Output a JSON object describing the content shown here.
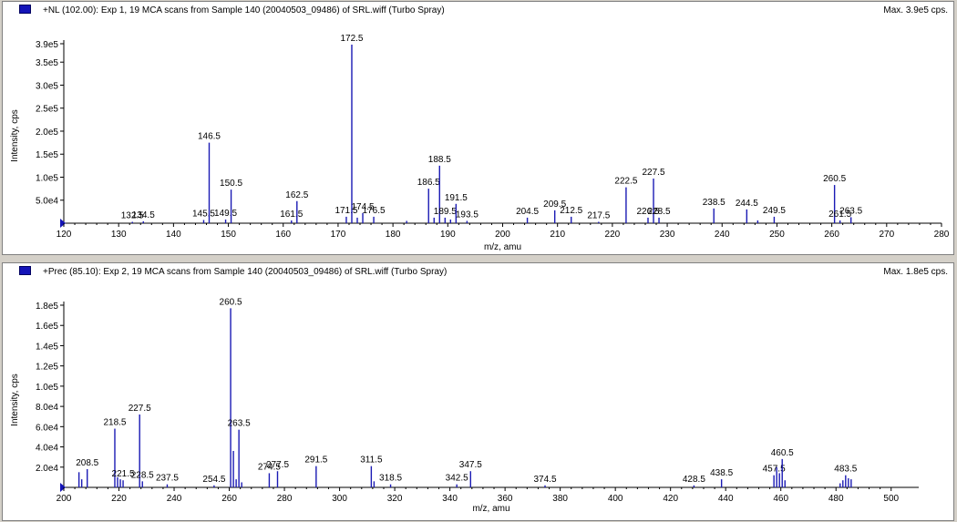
{
  "chart_data": [
    {
      "type": "bar",
      "title": "+NL (102.00): Exp 1, 19 MCA scans from Sample 140 (20040503_09486) of SRL.wiff (Turbo Spray)",
      "max_label": "Max. 3.9e5 cps.",
      "xlabel": "m/z, amu",
      "ylabel": "Intensity, cps",
      "xlim": [
        120,
        280
      ],
      "ylim": [
        0,
        390000
      ],
      "x_ticks": [
        120,
        130,
        140,
        150,
        160,
        170,
        180,
        190,
        200,
        210,
        220,
        230,
        240,
        250,
        260,
        270,
        280
      ],
      "y_ticks": [
        {
          "value": 50000,
          "label": "5.0e4"
        },
        {
          "value": 100000,
          "label": "1.0e5"
        },
        {
          "value": 150000,
          "label": "1.5e5"
        },
        {
          "value": 200000,
          "label": "2.0e5"
        },
        {
          "value": 250000,
          "label": "2.5e5"
        },
        {
          "value": 300000,
          "label": "3.0e5"
        },
        {
          "value": 350000,
          "label": "3.5e5"
        },
        {
          "value": 390000,
          "label": "3.9e5"
        }
      ],
      "peaks": [
        {
          "x": 132.5,
          "y": 3000,
          "label": "132.5"
        },
        {
          "x": 134.5,
          "y": 4000,
          "label": "134.5"
        },
        {
          "x": 145.5,
          "y": 7000,
          "label": "145.5"
        },
        {
          "x": 146.5,
          "y": 175000,
          "label": "146.5"
        },
        {
          "x": 149.5,
          "y": 8000,
          "label": "149.5"
        },
        {
          "x": 150.5,
          "y": 73000,
          "label": "150.5"
        },
        {
          "x": 161.5,
          "y": 6000,
          "label": "161.5"
        },
        {
          "x": 162.5,
          "y": 48000,
          "label": "162.5"
        },
        {
          "x": 171.5,
          "y": 14000,
          "label": "171.5"
        },
        {
          "x": 172.5,
          "y": 388000,
          "label": "172.5"
        },
        {
          "x": 173.5,
          "y": 12000
        },
        {
          "x": 174.5,
          "y": 22000,
          "label": "174.5"
        },
        {
          "x": 176.5,
          "y": 14000,
          "label": "176.5"
        },
        {
          "x": 182.5,
          "y": 5000
        },
        {
          "x": 186.5,
          "y": 75000,
          "label": "186.5"
        },
        {
          "x": 187.5,
          "y": 12000
        },
        {
          "x": 188.5,
          "y": 125000,
          "label": "188.5"
        },
        {
          "x": 189.5,
          "y": 12000,
          "label": "189.5"
        },
        {
          "x": 190.5,
          "y": 8000
        },
        {
          "x": 191.5,
          "y": 42000,
          "label": "191.5"
        },
        {
          "x": 193.5,
          "y": 5000,
          "label": "193.5"
        },
        {
          "x": 204.5,
          "y": 12000,
          "label": "204.5"
        },
        {
          "x": 209.5,
          "y": 28000,
          "label": "209.5"
        },
        {
          "x": 212.5,
          "y": 14000,
          "label": "212.5"
        },
        {
          "x": 217.5,
          "y": 3000,
          "label": "217.5"
        },
        {
          "x": 222.5,
          "y": 78000,
          "label": "222.5"
        },
        {
          "x": 226.5,
          "y": 12000,
          "label": "226.5"
        },
        {
          "x": 227.5,
          "y": 97000,
          "label": "227.5"
        },
        {
          "x": 228.5,
          "y": 12000,
          "label": "228.5"
        },
        {
          "x": 238.5,
          "y": 32000,
          "label": "238.5"
        },
        {
          "x": 244.5,
          "y": 30000,
          "label": "244.5"
        },
        {
          "x": 246.5,
          "y": 6000
        },
        {
          "x": 249.5,
          "y": 14000,
          "label": "249.5"
        },
        {
          "x": 260.5,
          "y": 83000,
          "label": "260.5"
        },
        {
          "x": 261.5,
          "y": 6000,
          "label": "261.5"
        },
        {
          "x": 263.5,
          "y": 13000,
          "label": "263.5"
        }
      ]
    },
    {
      "type": "bar",
      "title": "+Prec (85.10): Exp 2, 19 MCA scans from Sample 140 (20040503_09486) of SRL.wiff (Turbo Spray)",
      "max_label": "Max. 1.8e5 cps.",
      "xlabel": "m/z, amu",
      "ylabel": "Intensity, cps",
      "xlim": [
        200,
        510
      ],
      "ylim": [
        0,
        180000
      ],
      "x_ticks": [
        200,
        220,
        240,
        260,
        280,
        300,
        320,
        340,
        360,
        380,
        400,
        420,
        440,
        460,
        480,
        500
      ],
      "y_ticks": [
        {
          "value": 20000,
          "label": "2.0e4"
        },
        {
          "value": 40000,
          "label": "4.0e4"
        },
        {
          "value": 60000,
          "label": "6.0e4"
        },
        {
          "value": 80000,
          "label": "8.0e4"
        },
        {
          "value": 100000,
          "label": "1.0e5"
        },
        {
          "value": 120000,
          "label": "1.2e5"
        },
        {
          "value": 140000,
          "label": "1.4e5"
        },
        {
          "value": 160000,
          "label": "1.6e5"
        },
        {
          "value": 180000,
          "label": "1.8e5"
        }
      ],
      "peaks": [
        {
          "x": 205.5,
          "y": 15000
        },
        {
          "x": 206.5,
          "y": 8000
        },
        {
          "x": 208.5,
          "y": 18000,
          "label": "208.5"
        },
        {
          "x": 218.5,
          "y": 58000,
          "label": "218.5"
        },
        {
          "x": 219.5,
          "y": 10000
        },
        {
          "x": 220.5,
          "y": 8000
        },
        {
          "x": 221.5,
          "y": 7000,
          "label": "221.5"
        },
        {
          "x": 227.5,
          "y": 72000,
          "label": "227.5"
        },
        {
          "x": 228.5,
          "y": 6000,
          "label": "228.5"
        },
        {
          "x": 237.5,
          "y": 3000,
          "label": "237.5"
        },
        {
          "x": 254.5,
          "y": 2000,
          "label": "254.5"
        },
        {
          "x": 260.5,
          "y": 177000,
          "label": "260.5"
        },
        {
          "x": 261.5,
          "y": 36000
        },
        {
          "x": 262.5,
          "y": 8000
        },
        {
          "x": 263.5,
          "y": 57000,
          "label": "263.5"
        },
        {
          "x": 264.5,
          "y": 5000
        },
        {
          "x": 274.5,
          "y": 14000,
          "label": "274.5"
        },
        {
          "x": 277.5,
          "y": 16000,
          "label": "277.5"
        },
        {
          "x": 291.5,
          "y": 21000,
          "label": "291.5"
        },
        {
          "x": 311.5,
          "y": 21000,
          "label": "311.5"
        },
        {
          "x": 312.5,
          "y": 6000
        },
        {
          "x": 318.5,
          "y": 3000,
          "label": "318.5"
        },
        {
          "x": 342.5,
          "y": 3000,
          "label": "342.5"
        },
        {
          "x": 347.5,
          "y": 16000,
          "label": "347.5"
        },
        {
          "x": 374.5,
          "y": 2000,
          "label": "374.5"
        },
        {
          "x": 428.5,
          "y": 2000,
          "label": "428.5"
        },
        {
          "x": 438.5,
          "y": 8000,
          "label": "438.5"
        },
        {
          "x": 457.5,
          "y": 12000,
          "label": "457.5"
        },
        {
          "x": 458.5,
          "y": 20000
        },
        {
          "x": 459.5,
          "y": 14000
        },
        {
          "x": 460.5,
          "y": 28000,
          "label": "460.5"
        },
        {
          "x": 461.5,
          "y": 7000
        },
        {
          "x": 481.5,
          "y": 4000
        },
        {
          "x": 482.5,
          "y": 7000
        },
        {
          "x": 483.5,
          "y": 12000,
          "label": "483.5"
        },
        {
          "x": 484.5,
          "y": 9000
        },
        {
          "x": 485.5,
          "y": 8000
        }
      ]
    }
  ]
}
